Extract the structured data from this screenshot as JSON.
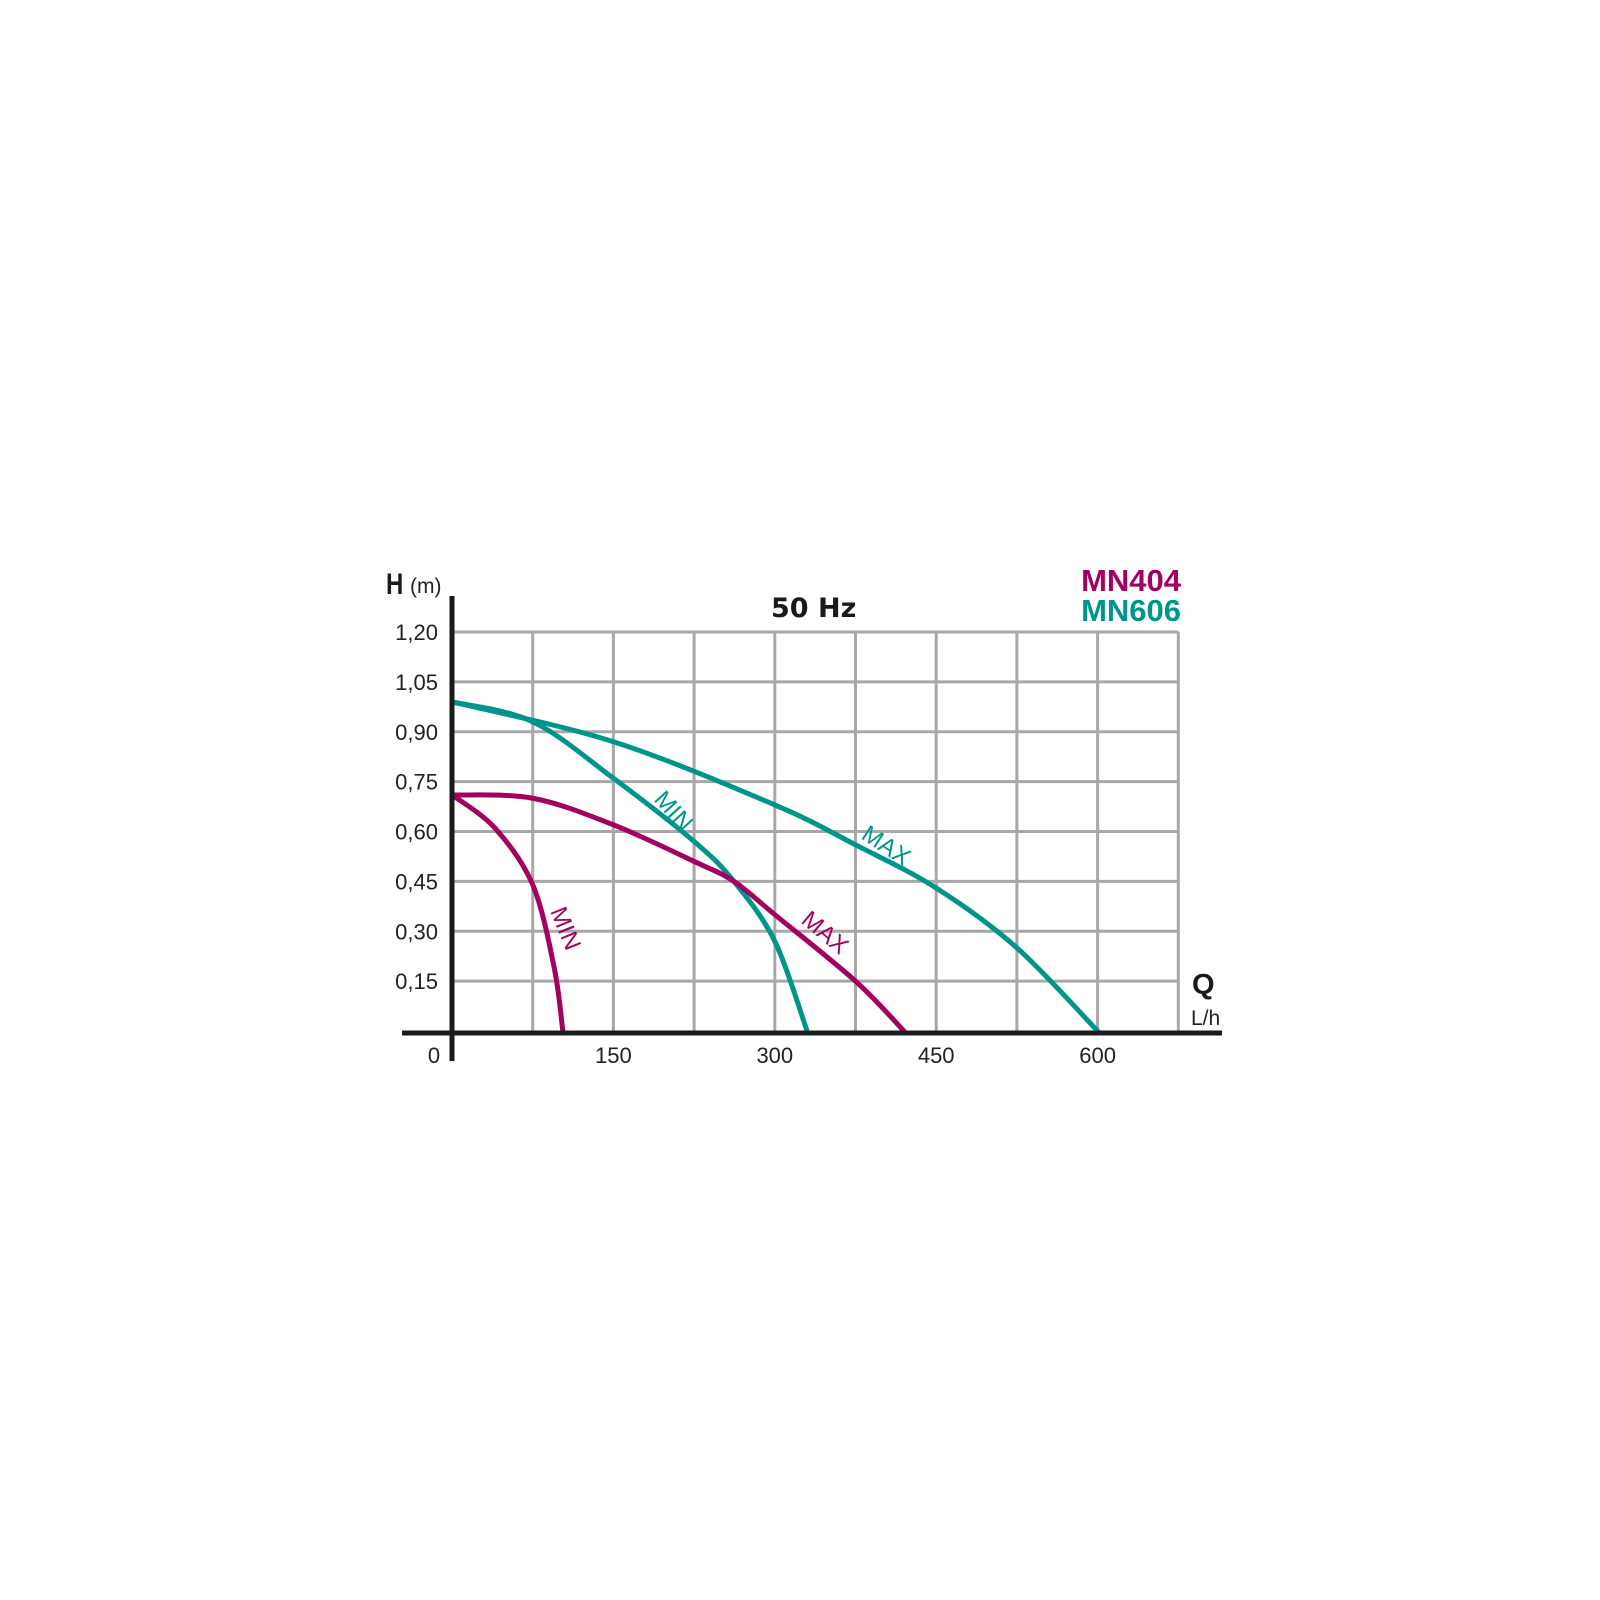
{
  "chart_data": {
    "type": "line",
    "title": "50 Hz",
    "ylabel": "H",
    "yunit": "(m)",
    "xlabel": "Q",
    "xunit": "L/h",
    "xlim": [
      0,
      675
    ],
    "ylim": [
      0,
      1.2
    ],
    "grid": true,
    "x_tick_labels": [
      "0",
      "150",
      "300",
      "450",
      "600"
    ],
    "x_tick_values": [
      0,
      150,
      300,
      450,
      600
    ],
    "x_grid_step": 75,
    "y_tick_labels": [
      "0,15",
      "0,30",
      "0,45",
      "0,60",
      "0,75",
      "0,90",
      "1,05",
      "1,20"
    ],
    "y_tick_values": [
      0.15,
      0.3,
      0.45,
      0.6,
      0.75,
      0.9,
      1.05,
      1.2
    ],
    "legend": [
      {
        "name": "MN404",
        "color": "#a3005f"
      },
      {
        "name": "MN606",
        "color": "#00958a"
      }
    ],
    "legend_placement": "top-right",
    "series": [
      {
        "model": "MN606",
        "label": "MAX",
        "color": "#00958a",
        "points": [
          [
            0,
            0.99
          ],
          [
            150,
            0.87
          ],
          [
            300,
            0.68
          ],
          [
            375,
            0.56
          ],
          [
            450,
            0.43
          ],
          [
            525,
            0.25
          ],
          [
            600,
            0
          ]
        ]
      },
      {
        "model": "MN606",
        "label": "MIN",
        "color": "#00958a",
        "points": [
          [
            0,
            0.99
          ],
          [
            75,
            0.93
          ],
          [
            150,
            0.76
          ],
          [
            225,
            0.57
          ],
          [
            262,
            0.45
          ],
          [
            300,
            0.27
          ],
          [
            330,
            0
          ]
        ]
      },
      {
        "model": "MN404",
        "label": "MAX",
        "color": "#a3005f",
        "points": [
          [
            0,
            0.71
          ],
          [
            75,
            0.7
          ],
          [
            150,
            0.62
          ],
          [
            225,
            0.51
          ],
          [
            262,
            0.45
          ],
          [
            300,
            0.35
          ],
          [
            375,
            0.15
          ],
          [
            420,
            0
          ]
        ]
      },
      {
        "model": "MN404",
        "label": "MIN",
        "color": "#a3005f",
        "points": [
          [
            0,
            0.71
          ],
          [
            40,
            0.61
          ],
          [
            75,
            0.44
          ],
          [
            95,
            0.19
          ],
          [
            103,
            0
          ]
        ]
      }
    ]
  }
}
